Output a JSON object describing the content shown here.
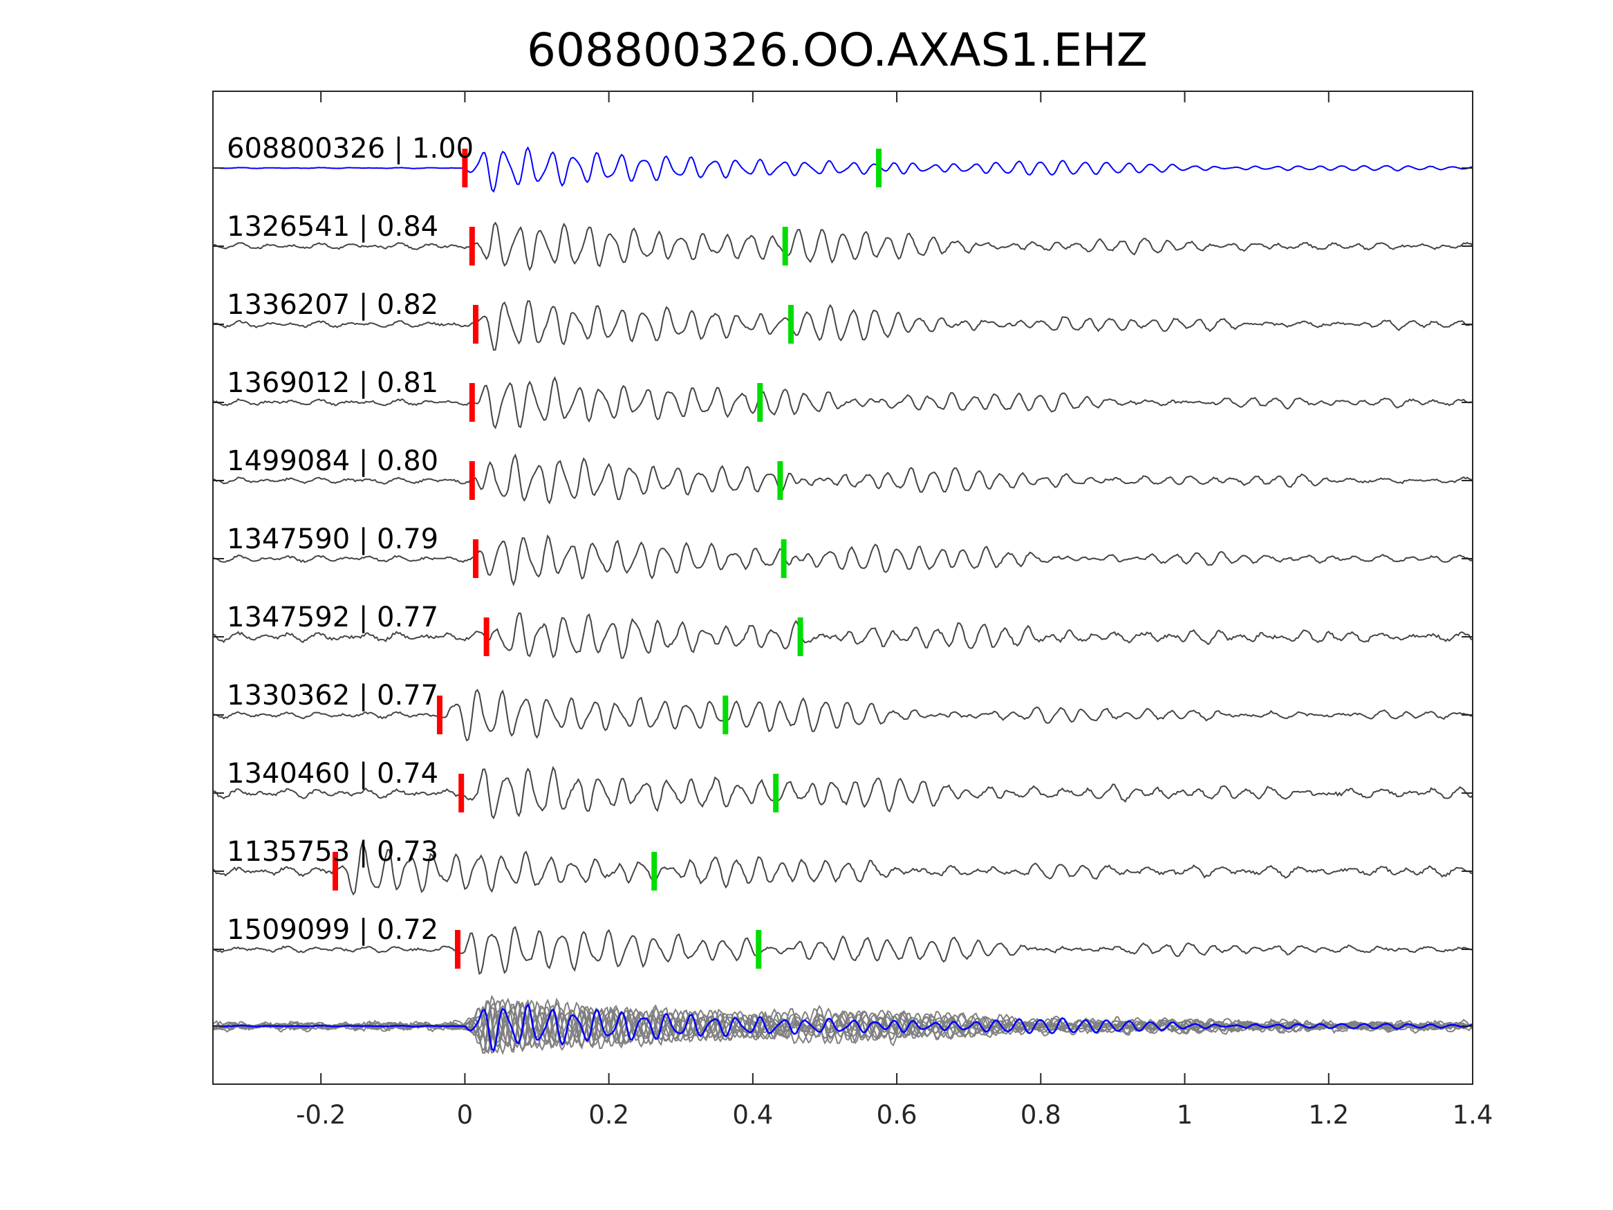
{
  "colors": {
    "template": "#0000ff",
    "trace": "#444444",
    "stack": "#808080",
    "p_pick": "#ff0000",
    "s_pick": "#00dd00"
  },
  "chart_data": {
    "type": "line",
    "title": "608800326.OO.AXAS1.EHZ",
    "xlabel": "",
    "ylabel": "",
    "xlim": [
      -0.35,
      1.4
    ],
    "xticks": [
      -0.2,
      0,
      0.2,
      0.4,
      0.6,
      0.8,
      1,
      1.2,
      1.4
    ],
    "xtick_labels": [
      "-0.2",
      "0",
      "0.2",
      "0.4",
      "0.6",
      "0.8",
      "1",
      "1.2",
      "1.4"
    ],
    "grid": false,
    "series": [
      {
        "label": "608800326 | 1.00",
        "p_pick": 0.0,
        "s_pick": 0.575,
        "color": "template"
      },
      {
        "label": "1326541 | 0.84",
        "p_pick": 0.01,
        "s_pick": 0.445,
        "color": "trace"
      },
      {
        "label": "1336207 | 0.82",
        "p_pick": 0.015,
        "s_pick": 0.453,
        "color": "trace"
      },
      {
        "label": "1369012 | 0.81",
        "p_pick": 0.01,
        "s_pick": 0.41,
        "color": "trace"
      },
      {
        "label": "1499084 | 0.80",
        "p_pick": 0.01,
        "s_pick": 0.438,
        "color": "trace"
      },
      {
        "label": "1347590 | 0.79",
        "p_pick": 0.015,
        "s_pick": 0.443,
        "color": "trace"
      },
      {
        "label": "1347592 | 0.77",
        "p_pick": 0.03,
        "s_pick": 0.466,
        "color": "trace"
      },
      {
        "label": "1330362 | 0.77",
        "p_pick": -0.035,
        "s_pick": 0.362,
        "color": "trace"
      },
      {
        "label": "1340460 | 0.74",
        "p_pick": -0.005,
        "s_pick": 0.432,
        "color": "trace"
      },
      {
        "label": "1135753 | 0.73",
        "p_pick": -0.18,
        "s_pick": 0.263,
        "color": "trace"
      },
      {
        "label": "1509099 | 0.72",
        "p_pick": -0.01,
        "s_pick": 0.408,
        "color": "trace"
      }
    ],
    "overlay": {
      "description_shown": false,
      "traces": 11
    }
  }
}
